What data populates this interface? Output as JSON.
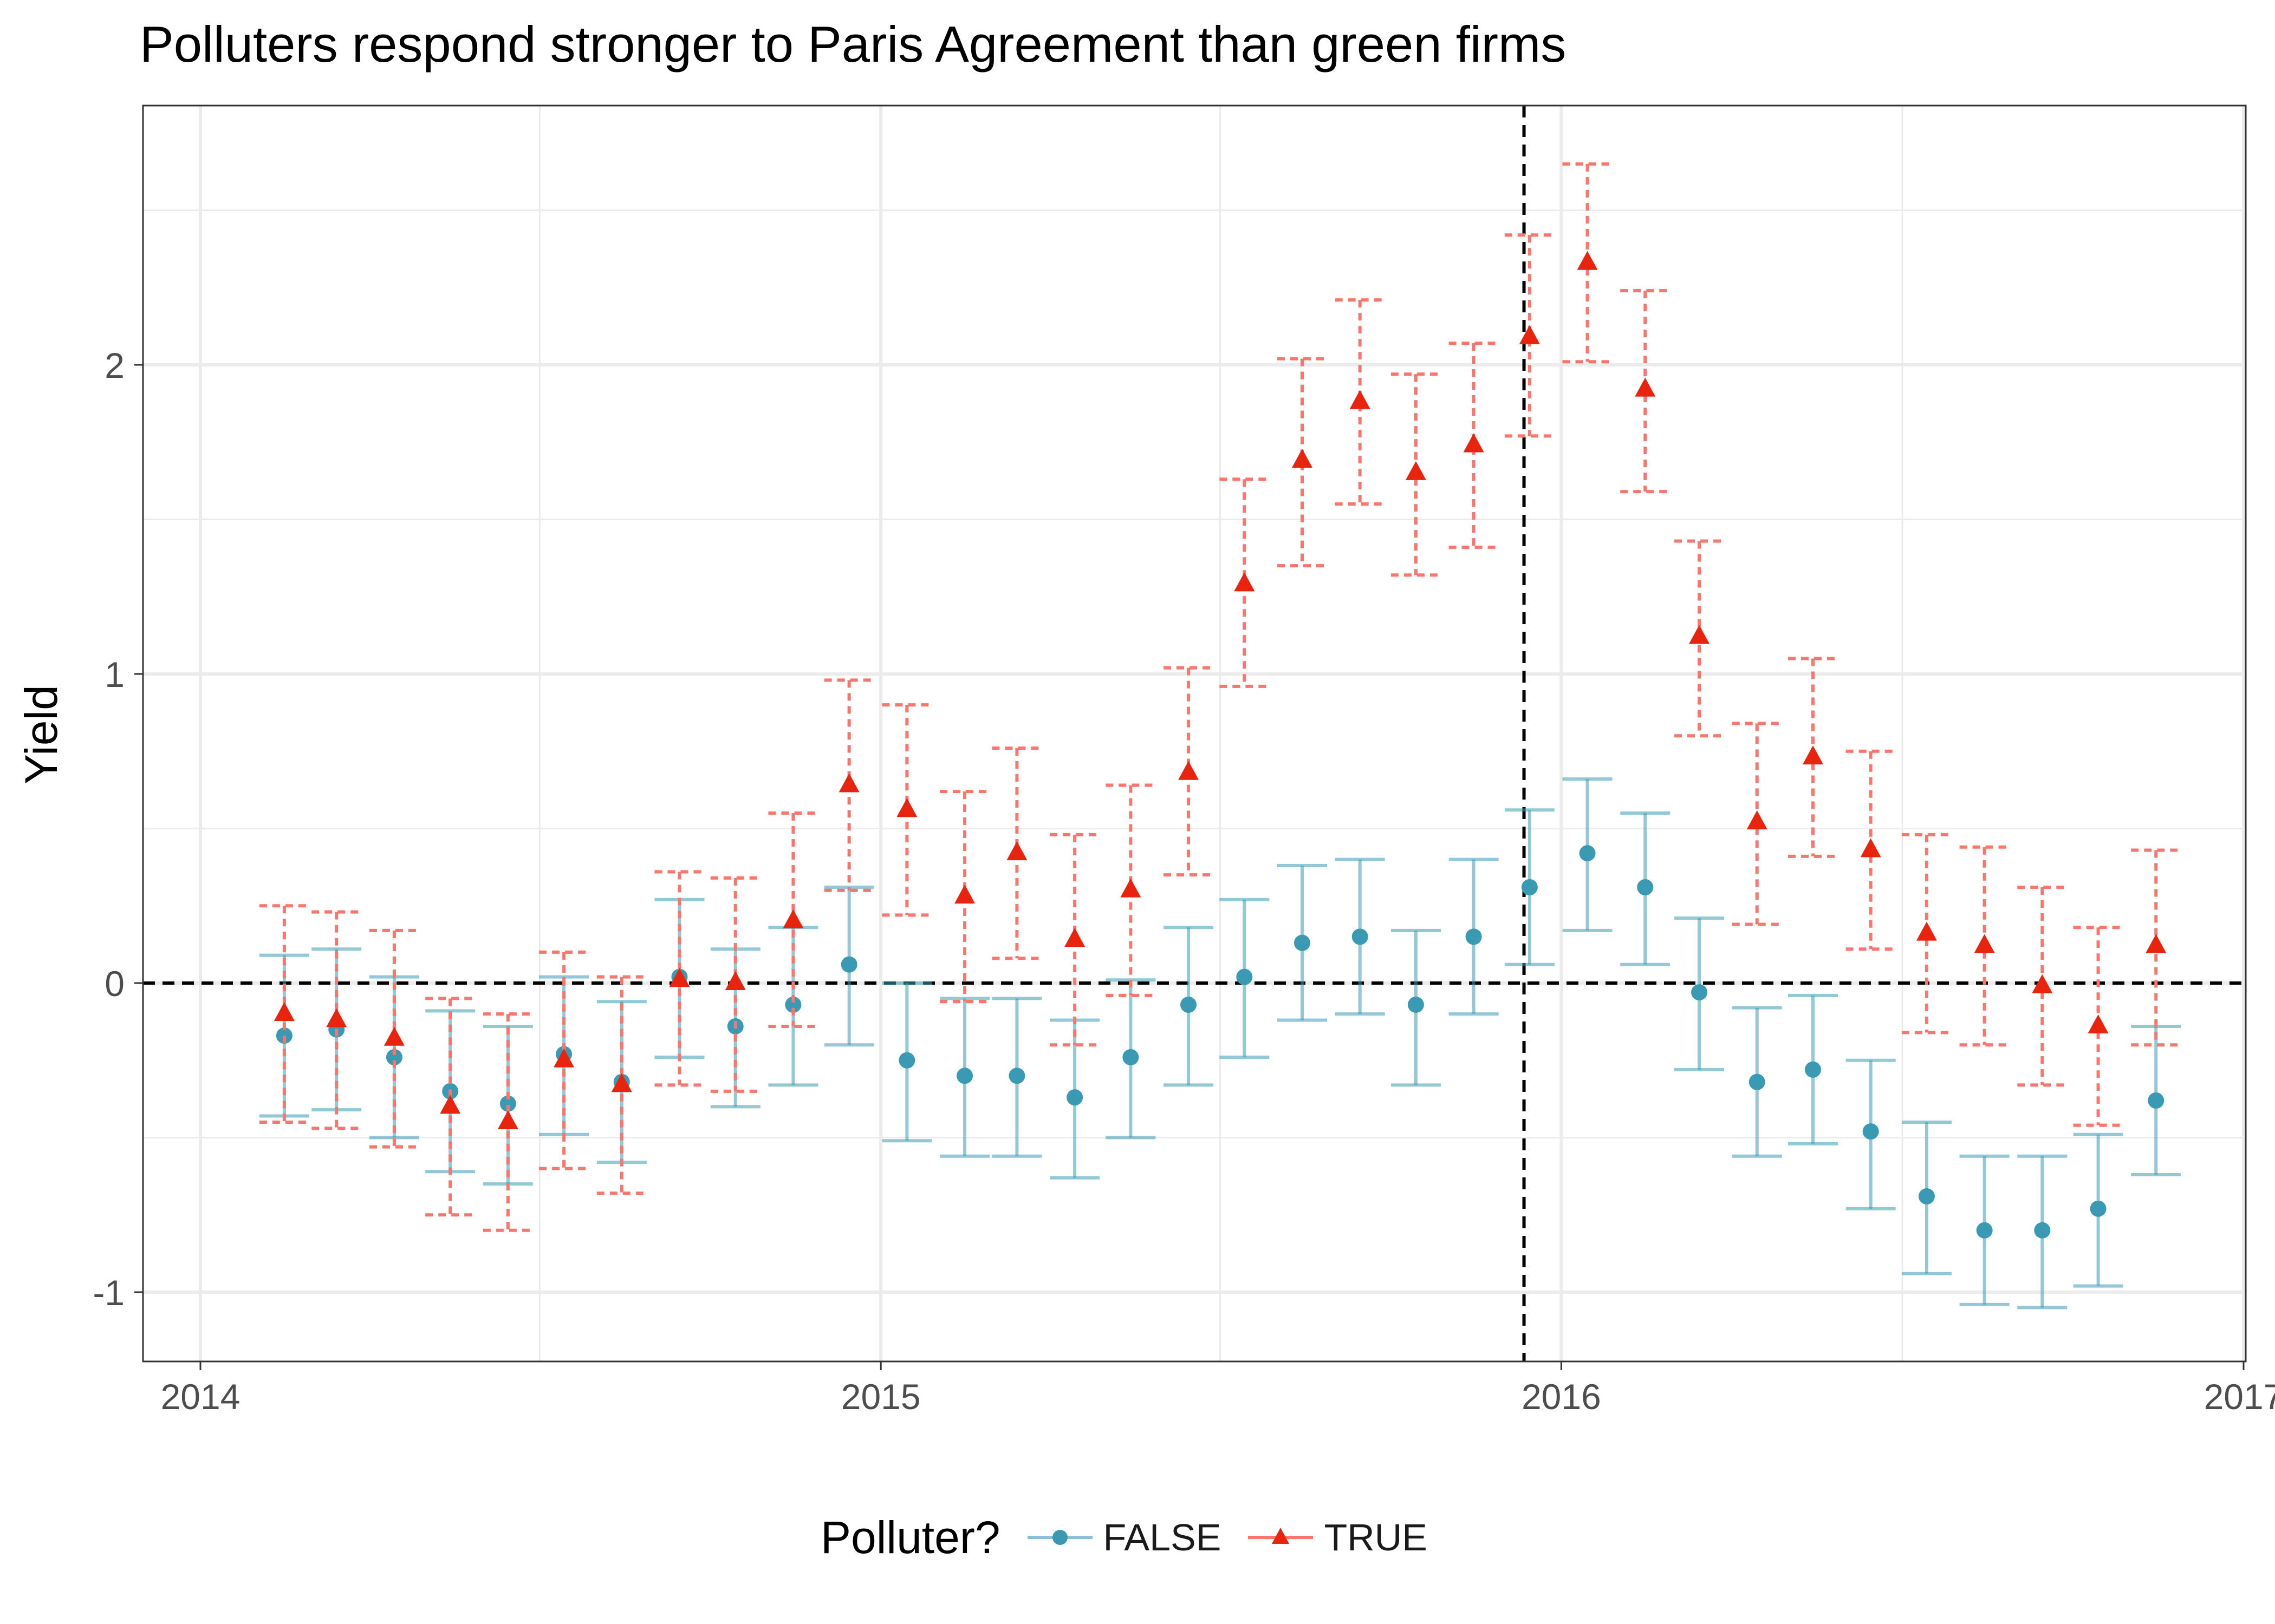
{
  "chart_data": {
    "type": "scatter",
    "title": "Polluters respond stronger to Paris Agreement than green firms",
    "xlabel": "",
    "ylabel": "Yield",
    "x_ticks": [
      "2014",
      "2015",
      "2016",
      "2017"
    ],
    "y_ticks": [
      "-1",
      "0",
      "1",
      "2"
    ],
    "xlim": [
      "2014-01-01",
      "2017-01-01"
    ],
    "ylim": [
      -1.22,
      2.85
    ],
    "reference_lines": {
      "hline_y": 0,
      "vline_x": "2015-12-12"
    },
    "grid": true,
    "legend": {
      "title": "Polluter?",
      "position": "bottom"
    },
    "x": [
      "2014-02",
      "2014-03",
      "2014-04",
      "2014-05",
      "2014-06",
      "2014-07",
      "2014-08",
      "2014-09",
      "2014-10",
      "2014-11",
      "2014-12",
      "2015-01",
      "2015-02",
      "2015-03",
      "2015-04",
      "2015-05",
      "2015-06",
      "2015-07",
      "2015-08",
      "2015-09",
      "2015-10",
      "2015-11",
      "2015-12",
      "2016-01",
      "2016-02",
      "2016-03",
      "2016-04",
      "2016-05",
      "2016-06",
      "2016-07",
      "2016-08",
      "2016-09",
      "2016-10",
      "2016-11",
      "2016-12"
    ],
    "series": [
      {
        "name": "FALSE",
        "color": "#3a9ab4",
        "marker": "circle",
        "values": [
          -0.17,
          -0.15,
          -0.24,
          -0.35,
          -0.39,
          -0.23,
          -0.32,
          0.02,
          -0.14,
          -0.07,
          0.06,
          -0.25,
          -0.3,
          -0.3,
          -0.37,
          -0.24,
          -0.07,
          0.02,
          0.13,
          0.15,
          -0.07,
          0.15,
          0.31,
          0.42,
          0.31,
          -0.03,
          -0.32,
          -0.28,
          -0.48,
          -0.69,
          -0.8,
          -0.8,
          -0.73,
          -0.38,
          null
        ],
        "lower": [
          -0.43,
          -0.41,
          -0.5,
          -0.61,
          -0.65,
          -0.49,
          -0.58,
          -0.24,
          -0.4,
          -0.33,
          -0.2,
          -0.51,
          -0.56,
          -0.56,
          -0.63,
          -0.5,
          -0.33,
          -0.24,
          -0.12,
          -0.1,
          -0.33,
          -0.1,
          0.06,
          0.17,
          0.06,
          -0.28,
          -0.56,
          -0.52,
          -0.73,
          -0.94,
          -1.04,
          -1.05,
          -0.98,
          -0.62,
          null
        ],
        "upper": [
          0.09,
          0.11,
          0.02,
          -0.09,
          -0.14,
          0.02,
          -0.06,
          0.27,
          0.11,
          0.18,
          0.31,
          0.0,
          -0.05,
          -0.05,
          -0.12,
          0.01,
          0.18,
          0.27,
          0.38,
          0.4,
          0.17,
          0.4,
          0.56,
          0.66,
          0.55,
          0.21,
          -0.08,
          -0.04,
          -0.25,
          -0.45,
          -0.56,
          -0.56,
          -0.49,
          -0.14,
          null
        ]
      },
      {
        "name": "TRUE",
        "color": "#f8766d",
        "marker": "triangle",
        "values": [
          -0.1,
          -0.12,
          -0.18,
          -0.4,
          -0.45,
          -0.25,
          -0.33,
          0.01,
          0.0,
          0.2,
          0.64,
          0.56,
          0.28,
          0.42,
          0.14,
          0.3,
          0.68,
          1.29,
          1.69,
          1.88,
          1.65,
          1.74,
          2.09,
          2.33,
          1.92,
          1.12,
          0.52,
          0.73,
          0.43,
          0.16,
          0.12,
          -0.01,
          -0.14,
          0.12,
          null
        ],
        "lower": [
          -0.45,
          -0.47,
          -0.53,
          -0.75,
          -0.8,
          -0.6,
          -0.68,
          -0.33,
          -0.35,
          -0.14,
          0.3,
          0.22,
          -0.06,
          0.08,
          -0.2,
          -0.04,
          0.35,
          0.96,
          1.35,
          1.55,
          1.32,
          1.41,
          1.77,
          2.01,
          1.59,
          0.8,
          0.19,
          0.41,
          0.11,
          -0.16,
          -0.2,
          -0.33,
          -0.46,
          -0.2,
          null
        ],
        "upper": [
          0.25,
          0.23,
          0.17,
          -0.05,
          -0.1,
          0.1,
          0.02,
          0.36,
          0.34,
          0.55,
          0.98,
          0.9,
          0.62,
          0.76,
          0.48,
          0.64,
          1.02,
          1.63,
          2.02,
          2.21,
          1.97,
          2.07,
          2.42,
          2.65,
          2.24,
          1.43,
          0.84,
          1.05,
          0.75,
          0.48,
          0.44,
          0.31,
          0.18,
          0.43,
          null
        ]
      }
    ]
  }
}
